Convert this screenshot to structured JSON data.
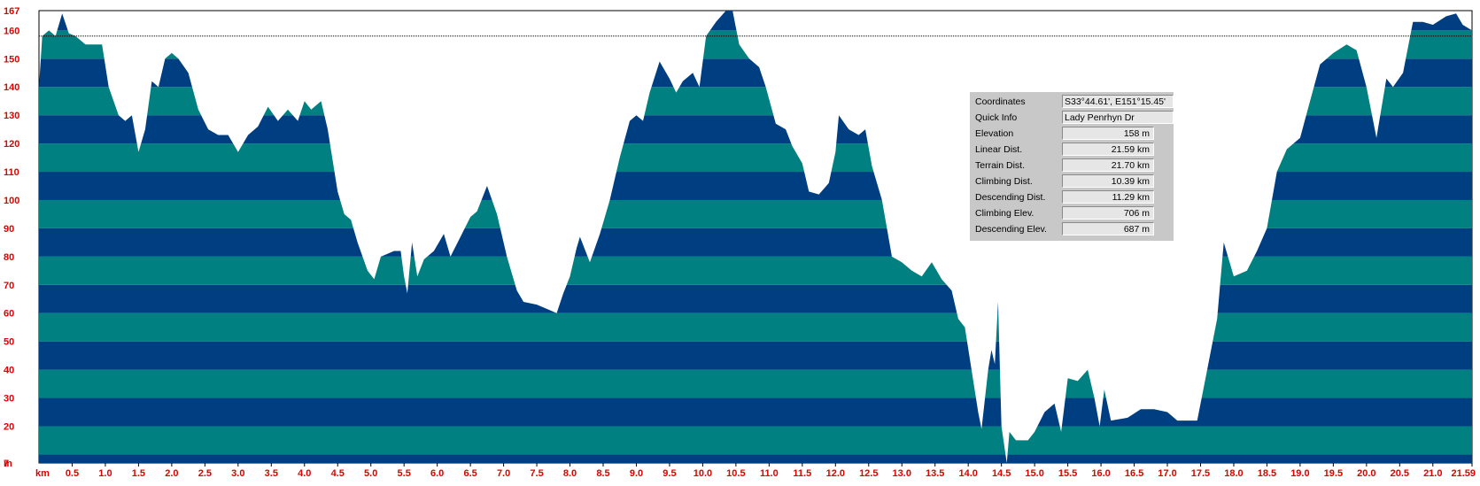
{
  "chart_data": {
    "type": "area",
    "x_unit": "km",
    "y_unit": "m",
    "x_ticks": [
      "0.5",
      "1.0",
      "1.5",
      "2.0",
      "2.5",
      "3.0",
      "3.5",
      "4.0",
      "4.5",
      "5.0",
      "5.5",
      "6.0",
      "6.5",
      "7.0",
      "7.5",
      "8.0",
      "8.5",
      "9.0",
      "9.5",
      "10.0",
      "10.5",
      "11.0",
      "11.5",
      "12.0",
      "12.5",
      "13.0",
      "13.5",
      "14.0",
      "14.5",
      "15.0",
      "15.5",
      "16.0",
      "16.5",
      "17.0",
      "17.5",
      "18.0",
      "18.5",
      "19.0",
      "19.5",
      "20.0",
      "20.5",
      "21.0",
      "21.59"
    ],
    "y_ticks": [
      "167",
      "160",
      "150",
      "140",
      "130",
      "120",
      "110",
      "100",
      "90",
      "80",
      "70",
      "60",
      "50",
      "40",
      "30",
      "20",
      "7"
    ],
    "xlim": [
      0,
      21.59
    ],
    "ylim": [
      7,
      167
    ],
    "reference_elevation": 158,
    "band_step": 10,
    "band_colors": [
      "#003e82",
      "#008080"
    ],
    "profile": [
      [
        0,
        140
      ],
      [
        0.05,
        158
      ],
      [
        0.15,
        160
      ],
      [
        0.25,
        158
      ],
      [
        0.35,
        166
      ],
      [
        0.45,
        159
      ],
      [
        0.55,
        158
      ],
      [
        0.7,
        155
      ],
      [
        0.85,
        155
      ],
      [
        0.95,
        155
      ],
      [
        1.05,
        140
      ],
      [
        1.2,
        130
      ],
      [
        1.3,
        128
      ],
      [
        1.4,
        130
      ],
      [
        1.5,
        117
      ],
      [
        1.6,
        125
      ],
      [
        1.7,
        142
      ],
      [
        1.8,
        140
      ],
      [
        1.9,
        150
      ],
      [
        2.0,
        152
      ],
      [
        2.1,
        150
      ],
      [
        2.25,
        145
      ],
      [
        2.4,
        132
      ],
      [
        2.55,
        125
      ],
      [
        2.7,
        123
      ],
      [
        2.85,
        123
      ],
      [
        3.0,
        117
      ],
      [
        3.15,
        123
      ],
      [
        3.3,
        126
      ],
      [
        3.45,
        133
      ],
      [
        3.6,
        128
      ],
      [
        3.75,
        132
      ],
      [
        3.9,
        128
      ],
      [
        4.0,
        135
      ],
      [
        4.1,
        132
      ],
      [
        4.25,
        135
      ],
      [
        4.35,
        125
      ],
      [
        4.5,
        103
      ],
      [
        4.6,
        95
      ],
      [
        4.7,
        93
      ],
      [
        4.8,
        85
      ],
      [
        4.95,
        75
      ],
      [
        5.05,
        72
      ],
      [
        5.15,
        80
      ],
      [
        5.25,
        81
      ],
      [
        5.35,
        82
      ],
      [
        5.45,
        82
      ],
      [
        5.5,
        73
      ],
      [
        5.55,
        67
      ],
      [
        5.62,
        85
      ],
      [
        5.7,
        73
      ],
      [
        5.8,
        79
      ],
      [
        5.95,
        82
      ],
      [
        6.1,
        88
      ],
      [
        6.2,
        80
      ],
      [
        6.35,
        87
      ],
      [
        6.5,
        94
      ],
      [
        6.6,
        96
      ],
      [
        6.75,
        105
      ],
      [
        6.9,
        95
      ],
      [
        7.05,
        80
      ],
      [
        7.2,
        68
      ],
      [
        7.3,
        64
      ],
      [
        7.5,
        63
      ],
      [
        7.7,
        61
      ],
      [
        7.8,
        60
      ],
      [
        7.9,
        67
      ],
      [
        8.0,
        73
      ],
      [
        8.1,
        83
      ],
      [
        8.15,
        87
      ],
      [
        8.3,
        78
      ],
      [
        8.45,
        88
      ],
      [
        8.6,
        100
      ],
      [
        8.75,
        115
      ],
      [
        8.9,
        128
      ],
      [
        9.0,
        130
      ],
      [
        9.1,
        128
      ],
      [
        9.2,
        138
      ],
      [
        9.35,
        149
      ],
      [
        9.5,
        143
      ],
      [
        9.6,
        138
      ],
      [
        9.7,
        142
      ],
      [
        9.85,
        145
      ],
      [
        9.95,
        140
      ],
      [
        10.05,
        158
      ],
      [
        10.2,
        163
      ],
      [
        10.35,
        167
      ],
      [
        10.45,
        167
      ],
      [
        10.55,
        155
      ],
      [
        10.7,
        150
      ],
      [
        10.85,
        147
      ],
      [
        10.95,
        140
      ],
      [
        11.1,
        127
      ],
      [
        11.25,
        125
      ],
      [
        11.35,
        119
      ],
      [
        11.5,
        113
      ],
      [
        11.6,
        103
      ],
      [
        11.75,
        102
      ],
      [
        11.9,
        106
      ],
      [
        12.0,
        117
      ],
      [
        12.05,
        130
      ],
      [
        12.2,
        125
      ],
      [
        12.35,
        123
      ],
      [
        12.45,
        125
      ],
      [
        12.55,
        112
      ],
      [
        12.7,
        100
      ],
      [
        12.85,
        80
      ],
      [
        13.0,
        78
      ],
      [
        13.15,
        75
      ],
      [
        13.3,
        73
      ],
      [
        13.45,
        78
      ],
      [
        13.6,
        72
      ],
      [
        13.75,
        68
      ],
      [
        13.85,
        58
      ],
      [
        13.95,
        55
      ],
      [
        14.05,
        40
      ],
      [
        14.15,
        25
      ],
      [
        14.2,
        19
      ],
      [
        14.3,
        40
      ],
      [
        14.35,
        47
      ],
      [
        14.4,
        42
      ],
      [
        14.45,
        64
      ],
      [
        14.5,
        20
      ],
      [
        14.58,
        7
      ],
      [
        14.62,
        18
      ],
      [
        14.72,
        15
      ],
      [
        14.9,
        15
      ],
      [
        15.0,
        18
      ],
      [
        15.15,
        25
      ],
      [
        15.3,
        28
      ],
      [
        15.4,
        18
      ],
      [
        15.5,
        37
      ],
      [
        15.65,
        36
      ],
      [
        15.8,
        40
      ],
      [
        15.9,
        30
      ],
      [
        15.98,
        20
      ],
      [
        16.05,
        33
      ],
      [
        16.15,
        22
      ],
      [
        16.4,
        23
      ],
      [
        16.6,
        26
      ],
      [
        16.8,
        26
      ],
      [
        17.0,
        25
      ],
      [
        17.15,
        22
      ],
      [
        17.3,
        22
      ],
      [
        17.45,
        22
      ],
      [
        17.6,
        40
      ],
      [
        17.75,
        58
      ],
      [
        17.85,
        85
      ],
      [
        18.0,
        73
      ],
      [
        18.2,
        75
      ],
      [
        18.35,
        82
      ],
      [
        18.5,
        90
      ],
      [
        18.65,
        110
      ],
      [
        18.8,
        118
      ],
      [
        19.0,
        122
      ],
      [
        19.15,
        135
      ],
      [
        19.3,
        148
      ],
      [
        19.5,
        152
      ],
      [
        19.7,
        155
      ],
      [
        19.85,
        153
      ],
      [
        20.0,
        140
      ],
      [
        20.15,
        122
      ],
      [
        20.3,
        143
      ],
      [
        20.4,
        140
      ],
      [
        20.55,
        145
      ],
      [
        20.7,
        163
      ],
      [
        20.85,
        163
      ],
      [
        21.0,
        162
      ],
      [
        21.2,
        165
      ],
      [
        21.35,
        166
      ],
      [
        21.45,
        162
      ],
      [
        21.59,
        160
      ]
    ]
  },
  "info": {
    "rows": [
      {
        "label": "Coordinates",
        "value": "S33°44.61', E151°15.45'"
      },
      {
        "label": "Quick Info",
        "value": "Lady Penrhyn Dr"
      },
      {
        "label": "Elevation",
        "value": "158 m"
      },
      {
        "label": "Linear Dist.",
        "value": "21.59 km"
      },
      {
        "label": "Terrain Dist.",
        "value": "21.70 km"
      },
      {
        "label": "Climbing Dist.",
        "value": "10.39 km"
      },
      {
        "label": "Descending Dist.",
        "value": "11.29 km"
      },
      {
        "label": "Climbing Elev.",
        "value": "706 m"
      },
      {
        "label": "Descending Elev.",
        "value": "687 m"
      }
    ]
  }
}
